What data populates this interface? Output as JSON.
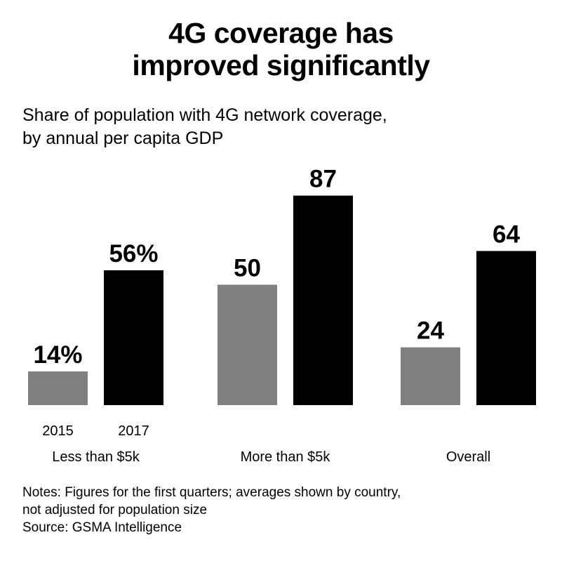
{
  "title_line1": "4G coverage has",
  "title_line2": "improved significantly",
  "subtitle_line1": "Share of population with 4G network coverage,",
  "subtitle_line2": "by annual per capita GDP",
  "notes_line1": "Notes: Figures for the first quarters; averages shown by country,",
  "notes_line2": "not adjusted for population size",
  "source": "Source: GSMA Intelligence",
  "colors": {
    "series_2015": "#808080",
    "series_2017": "#000000"
  },
  "chart_data": {
    "type": "bar",
    "title": "4G coverage has improved significantly",
    "subtitle": "Share of population with 4G network coverage, by annual per capita GDP",
    "categories": [
      "Less than $5k",
      "More than $5k",
      "Overall"
    ],
    "series": [
      {
        "name": "2015",
        "values": [
          14,
          50,
          24
        ],
        "labels": [
          "14%",
          "50",
          "24"
        ]
      },
      {
        "name": "2017",
        "values": [
          56,
          87,
          64
        ],
        "labels": [
          "56%",
          "87",
          "64"
        ]
      }
    ],
    "unit": "%",
    "ylim": [
      0,
      100
    ],
    "grid": false,
    "legend": "series names shown as labels under the first category"
  }
}
